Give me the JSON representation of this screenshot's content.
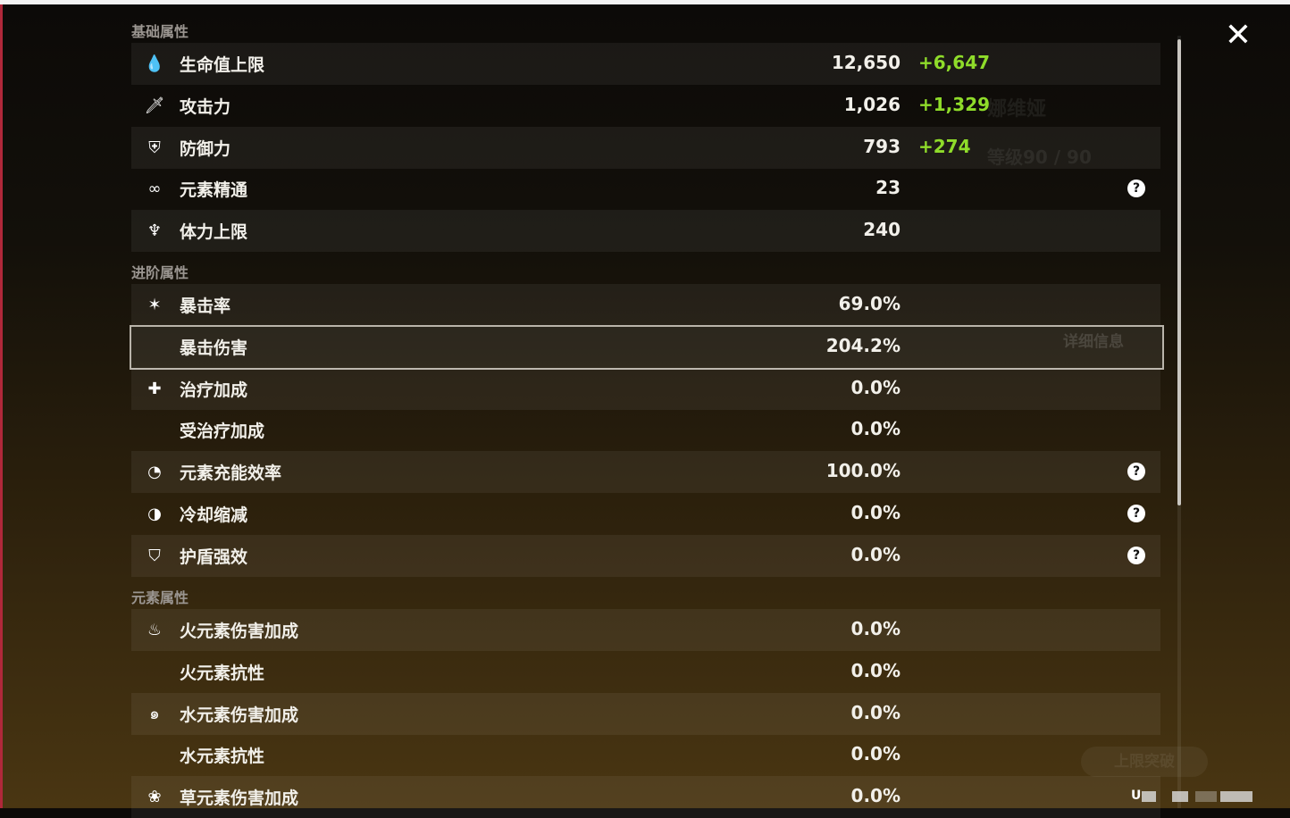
{
  "close_icon": "close-x",
  "background": {
    "character_name": "娜维娅",
    "level": "等级90 / 90",
    "ghost_button": "上限突破",
    "details_button": "详细信息"
  },
  "sections": [
    {
      "title": "基础属性",
      "rows": [
        {
          "icon": "hp-drop",
          "label": "生命值上限",
          "value": "12,650",
          "bonus": "+6,647"
        },
        {
          "icon": "sword",
          "label": "攻击力",
          "value": "1,026",
          "bonus": "+1,329"
        },
        {
          "icon": "shield",
          "label": "防御力",
          "value": "793",
          "bonus": "+274"
        },
        {
          "icon": "elemental-mastery",
          "label": "元素精通",
          "value": "23",
          "help": true
        },
        {
          "icon": "stamina",
          "label": "体力上限",
          "value": "240"
        }
      ]
    },
    {
      "title": "进阶属性",
      "rows": [
        {
          "icon": "crit-rate",
          "label": "暴击率",
          "value": "69.0%"
        },
        {
          "icon": "",
          "label": "暴击伤害",
          "value": "204.2%",
          "selected": true
        },
        {
          "icon": "healing-cross",
          "label": "治疗加成",
          "value": "0.0%"
        },
        {
          "icon": "",
          "label": "受治疗加成",
          "value": "0.0%"
        },
        {
          "icon": "energy-recharge",
          "label": "元素充能效率",
          "value": "100.0%",
          "help": true
        },
        {
          "icon": "cooldown",
          "label": "冷却缩减",
          "value": "0.0%",
          "help": true
        },
        {
          "icon": "shield-strength",
          "label": "护盾强效",
          "value": "0.0%",
          "help": true
        }
      ]
    },
    {
      "title": "元素属性",
      "rows": [
        {
          "icon": "pyro",
          "label": "火元素伤害加成",
          "value": "0.0%"
        },
        {
          "icon": "",
          "label": "火元素抗性",
          "value": "0.0%"
        },
        {
          "icon": "hydro",
          "label": "水元素伤害加成",
          "value": "0.0%"
        },
        {
          "icon": "",
          "label": "水元素抗性",
          "value": "0.0%"
        },
        {
          "icon": "dendro",
          "label": "草元素伤害加成",
          "value": "0.0%"
        }
      ]
    }
  ],
  "uid_prefix": "U"
}
